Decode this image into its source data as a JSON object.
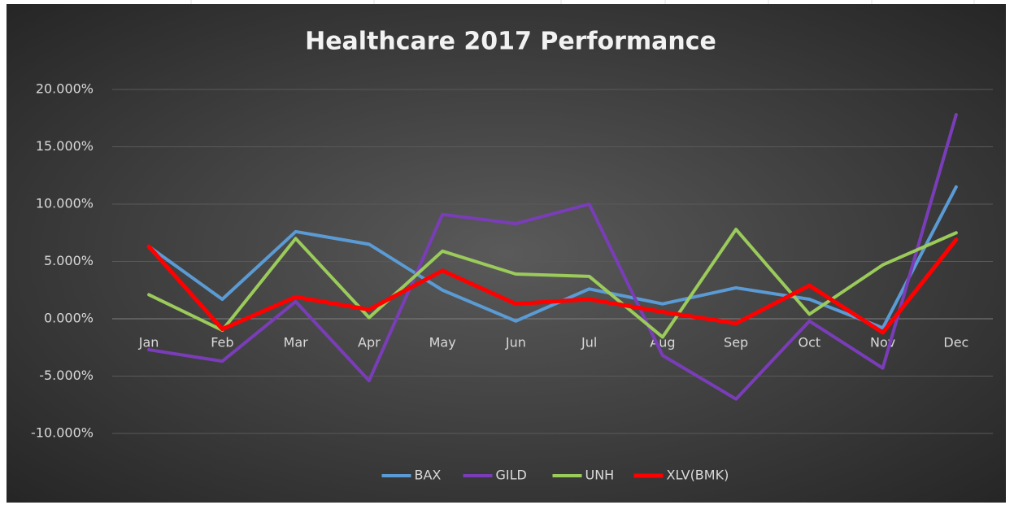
{
  "chart_data": {
    "type": "line",
    "title": "Healthcare 2017 Performance",
    "categories": [
      "Jan",
      "Feb",
      "Mar",
      "Apr",
      "May",
      "Jun",
      "Jul",
      "Aug",
      "Sep",
      "Oct",
      "Nov",
      "Dec"
    ],
    "series": [
      {
        "name": "BAX",
        "color": "#5b9bd5",
        "values": [
          6.3,
          1.7,
          7.6,
          6.5,
          2.5,
          -0.2,
          2.6,
          1.3,
          2.7,
          1.7,
          -0.8,
          11.5
        ]
      },
      {
        "name": "GILD",
        "color": "#7a3db8",
        "values": [
          -2.7,
          -3.7,
          1.5,
          -5.4,
          9.1,
          8.3,
          10.0,
          -3.2,
          -7.0,
          -0.2,
          -4.3,
          17.8
        ]
      },
      {
        "name": "UNH",
        "color": "#9bcb5a",
        "values": [
          2.1,
          -1.0,
          7.0,
          0.1,
          5.9,
          3.9,
          3.7,
          -1.6,
          7.8,
          0.4,
          4.7,
          7.5
        ]
      },
      {
        "name": "XLV(BMK)",
        "color": "#ff0000",
        "values": [
          6.3,
          -0.9,
          1.9,
          0.8,
          4.2,
          1.3,
          1.7,
          0.6,
          -0.4,
          2.9,
          -1.2,
          6.9
        ]
      }
    ],
    "ylim": [
      -10,
      20
    ],
    "yticks": [
      {
        "value": -10,
        "label": "-10.000%"
      },
      {
        "value": -5,
        "label": "-5.000%"
      },
      {
        "value": 0,
        "label": "0.000%"
      },
      {
        "value": 5,
        "label": "5.000%"
      },
      {
        "value": 10,
        "label": "10.000%"
      },
      {
        "value": 15,
        "label": "15.000%"
      },
      {
        "value": 20,
        "label": "20.000%"
      }
    ],
    "grid": true,
    "legend": "bottom"
  }
}
